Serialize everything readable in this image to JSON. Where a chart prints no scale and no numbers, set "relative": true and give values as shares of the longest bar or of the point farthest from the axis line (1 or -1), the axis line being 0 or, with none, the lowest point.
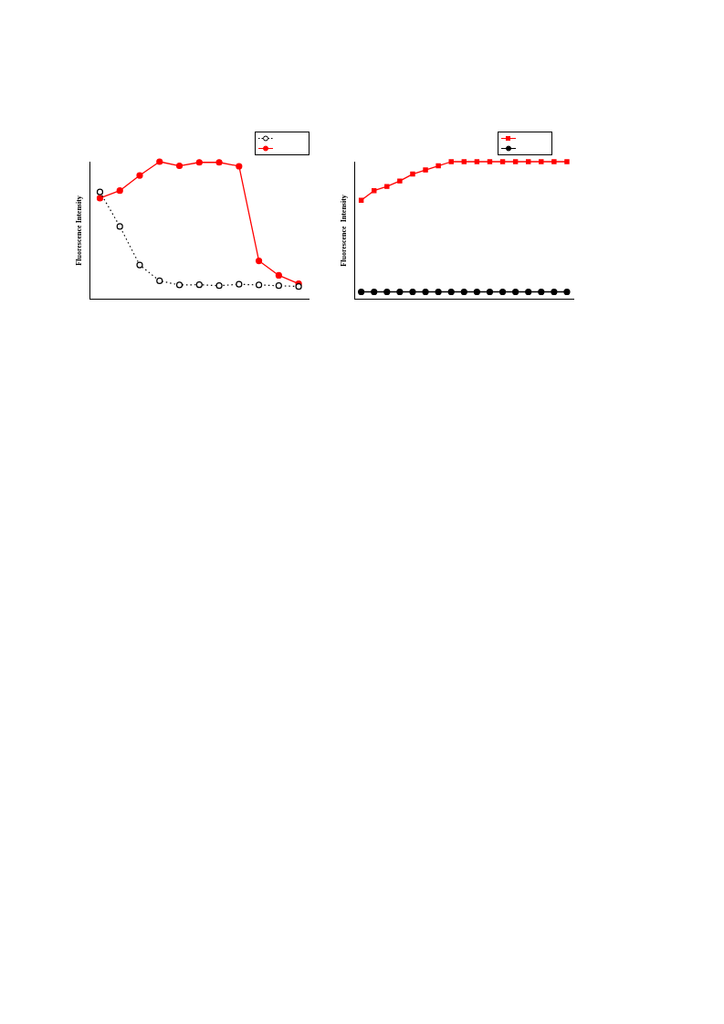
{
  "chart_data": [
    {
      "type": "line",
      "relative": true,
      "ylabel": "Fluorescence Intensity",
      "categories": [
        null,
        null,
        null,
        null,
        null,
        null,
        null,
        null,
        null,
        null,
        null
      ],
      "grid": false,
      "series": [
        {
          "color": "#000000",
          "marker": "circle",
          "line_style": "dotted",
          "values": [
            0.78,
            0.53,
            0.25,
            0.135,
            0.105,
            0.107,
            0.1,
            0.11,
            0.105,
            0.1,
            0.094
          ]
        },
        {
          "color": "#ff0000",
          "marker": "circle",
          "line_style": "solid",
          "values": [
            0.735,
            0.79,
            0.9,
            1,
            0.97,
            0.995,
            0.995,
            0.967,
            0.28,
            0.175,
            0.114
          ]
        }
      ]
    },
    {
      "type": "line",
      "relative": true,
      "ylabel": "Fluorescence  Intensity",
      "categories": [
        null,
        null,
        null,
        null,
        null,
        null,
        null,
        null,
        null,
        null,
        null,
        null,
        null,
        null,
        null,
        null,
        null
      ],
      "grid": false,
      "series": [
        {
          "color": "#ff0000",
          "marker": "square",
          "line_style": "solid",
          "values": [
            0.72,
            0.79,
            0.82,
            0.86,
            0.91,
            0.94,
            0.97,
            1,
            1,
            1,
            1,
            1,
            1,
            1,
            1,
            1,
            1
          ]
        },
        {
          "color": "#000000",
          "marker": "circle",
          "line_style": "solid",
          "values": [
            0.055,
            0.055,
            0.055,
            0.055,
            0.055,
            0.055,
            0.055,
            0.055,
            0.055,
            0.055,
            0.055,
            0.055,
            0.055,
            0.055,
            0.055,
            0.055,
            0.055
          ]
        }
      ]
    }
  ]
}
